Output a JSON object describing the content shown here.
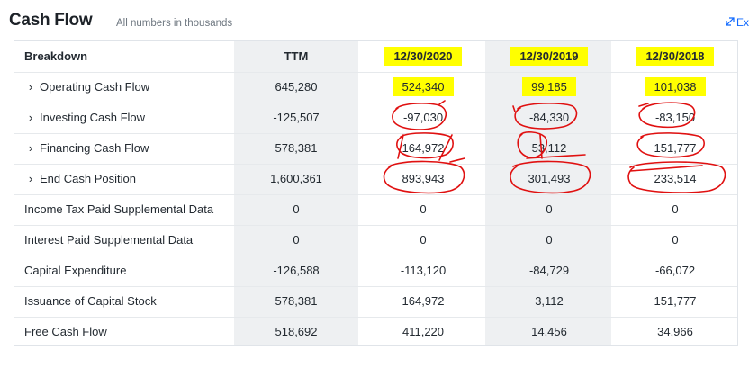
{
  "header": {
    "title": "Cash Flow",
    "subtitle": "All numbers in thousands",
    "expand_label": "Ex"
  },
  "table": {
    "columns": [
      "Breakdown",
      "TTM",
      "12/30/2020",
      "12/30/2019",
      "12/30/2018"
    ],
    "rows": [
      {
        "label": "Operating Cash Flow",
        "expandable": true,
        "values": [
          "645,280",
          "524,340",
          "99,185",
          "101,038"
        ]
      },
      {
        "label": "Investing Cash Flow",
        "expandable": true,
        "values": [
          "-125,507",
          "-97,030",
          "-84,330",
          "-83,150"
        ]
      },
      {
        "label": "Financing Cash Flow",
        "expandable": true,
        "values": [
          "578,381",
          "164,972",
          "53,112",
          "151,777"
        ]
      },
      {
        "label": "End Cash Position",
        "expandable": true,
        "values": [
          "1,600,361",
          "893,943",
          "301,493",
          "233,514"
        ]
      },
      {
        "label": "Income Tax Paid Supplemental Data",
        "expandable": false,
        "values": [
          "0",
          "0",
          "0",
          "0"
        ]
      },
      {
        "label": "Interest Paid Supplemental Data",
        "expandable": false,
        "values": [
          "0",
          "0",
          "0",
          "0"
        ]
      },
      {
        "label": "Capital Expenditure",
        "expandable": false,
        "values": [
          "-126,588",
          "-113,120",
          "-84,729",
          "-66,072"
        ]
      },
      {
        "label": "Issuance of Capital Stock",
        "expandable": false,
        "values": [
          "578,381",
          "164,972",
          "3,112",
          "151,777"
        ]
      },
      {
        "label": "Free Cash Flow",
        "expandable": false,
        "values": [
          "518,692",
          "411,220",
          "14,456",
          "34,966"
        ]
      }
    ]
  },
  "icons": {
    "expand": "expand-arrow-icon",
    "row_expand": "chevron-right-icon"
  },
  "colors": {
    "highlight": "#ffff00",
    "annotation": "#e01010",
    "link": "#0f69ff",
    "ttm_shade": "#eef0f2"
  }
}
